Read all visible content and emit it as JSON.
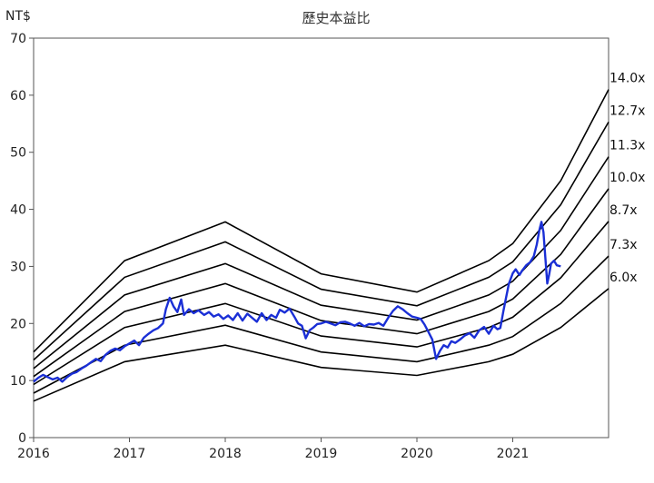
{
  "chart_data": {
    "type": "line",
    "title": "歷史本益比",
    "ylabel": "NT$",
    "xlabel": "",
    "xlim": [
      2016,
      2022
    ],
    "ylim": [
      0,
      70
    ],
    "yticks": [
      0,
      10,
      20,
      30,
      40,
      50,
      60,
      70
    ],
    "xticks": [
      "2016",
      "2017",
      "2018",
      "2019",
      "2020",
      "2021"
    ],
    "grid": false,
    "colors": {
      "bands": "#000000",
      "price": "#1a2fd6"
    },
    "bands": [
      {
        "name": "14.0x",
        "points": [
          [
            2016.0,
            15.0
          ],
          [
            2016.95,
            31.0
          ],
          [
            2018.0,
            37.8
          ],
          [
            2019.0,
            28.7
          ],
          [
            2020.0,
            25.5
          ],
          [
            2020.75,
            31.0
          ],
          [
            2021.0,
            34.0
          ],
          [
            2021.5,
            45.0
          ],
          [
            2022.0,
            61.0
          ]
        ]
      },
      {
        "name": "12.7x",
        "points": [
          [
            2016.0,
            13.6
          ],
          [
            2016.95,
            28.1
          ],
          [
            2018.0,
            34.3
          ],
          [
            2019.0,
            26.0
          ],
          [
            2020.0,
            23.1
          ],
          [
            2020.75,
            28.1
          ],
          [
            2021.0,
            30.8
          ],
          [
            2021.5,
            40.8
          ],
          [
            2022.0,
            55.3
          ]
        ]
      },
      {
        "name": "11.3x",
        "points": [
          [
            2016.0,
            12.1
          ],
          [
            2016.95,
            25.0
          ],
          [
            2018.0,
            30.5
          ],
          [
            2019.0,
            23.2
          ],
          [
            2020.0,
            20.6
          ],
          [
            2020.75,
            25.0
          ],
          [
            2021.0,
            27.4
          ],
          [
            2021.5,
            36.3
          ],
          [
            2022.0,
            49.2
          ]
        ]
      },
      {
        "name": "10.0x",
        "points": [
          [
            2016.0,
            10.7
          ],
          [
            2016.95,
            22.1
          ],
          [
            2018.0,
            27.0
          ],
          [
            2019.0,
            20.5
          ],
          [
            2020.0,
            18.2
          ],
          [
            2020.75,
            22.1
          ],
          [
            2021.0,
            24.3
          ],
          [
            2021.5,
            32.1
          ],
          [
            2022.0,
            43.6
          ]
        ]
      },
      {
        "name": "8.7x",
        "points": [
          [
            2016.0,
            9.3
          ],
          [
            2016.95,
            19.3
          ],
          [
            2018.0,
            23.5
          ],
          [
            2019.0,
            17.8
          ],
          [
            2020.0,
            15.9
          ],
          [
            2020.75,
            19.3
          ],
          [
            2021.0,
            21.1
          ],
          [
            2021.5,
            28.0
          ],
          [
            2022.0,
            37.9
          ]
        ]
      },
      {
        "name": "7.3x",
        "points": [
          [
            2016.0,
            7.8
          ],
          [
            2016.95,
            16.2
          ],
          [
            2018.0,
            19.7
          ],
          [
            2019.0,
            15.0
          ],
          [
            2020.0,
            13.3
          ],
          [
            2020.75,
            16.2
          ],
          [
            2021.0,
            17.7
          ],
          [
            2021.5,
            23.5
          ],
          [
            2022.0,
            31.8
          ]
        ]
      },
      {
        "name": "6.0x",
        "points": [
          [
            2016.0,
            6.4
          ],
          [
            2016.95,
            13.3
          ],
          [
            2018.0,
            16.2
          ],
          [
            2019.0,
            12.3
          ],
          [
            2020.0,
            10.9
          ],
          [
            2020.75,
            13.3
          ],
          [
            2021.0,
            14.6
          ],
          [
            2021.5,
            19.3
          ],
          [
            2022.0,
            26.1
          ]
        ]
      }
    ],
    "price": {
      "name": "",
      "points": [
        [
          2016.0,
          9.8
        ],
        [
          2016.05,
          10.5
        ],
        [
          2016.1,
          11.0
        ],
        [
          2016.15,
          10.6
        ],
        [
          2016.2,
          10.2
        ],
        [
          2016.25,
          10.5
        ],
        [
          2016.3,
          9.8
        ],
        [
          2016.35,
          10.6
        ],
        [
          2016.4,
          11.2
        ],
        [
          2016.45,
          11.5
        ],
        [
          2016.5,
          12.1
        ],
        [
          2016.55,
          12.6
        ],
        [
          2016.6,
          13.2
        ],
        [
          2016.65,
          13.8
        ],
        [
          2016.7,
          13.4
        ],
        [
          2016.75,
          14.5
        ],
        [
          2016.8,
          15.2
        ],
        [
          2016.85,
          15.6
        ],
        [
          2016.9,
          15.3
        ],
        [
          2016.95,
          16.0
        ],
        [
          2017.0,
          16.5
        ],
        [
          2017.05,
          17.0
        ],
        [
          2017.1,
          16.2
        ],
        [
          2017.15,
          17.5
        ],
        [
          2017.2,
          18.2
        ],
        [
          2017.25,
          18.8
        ],
        [
          2017.3,
          19.2
        ],
        [
          2017.35,
          20.0
        ],
        [
          2017.38,
          22.5
        ],
        [
          2017.42,
          24.5
        ],
        [
          2017.46,
          23.0
        ],
        [
          2017.5,
          22.0
        ],
        [
          2017.54,
          24.2
        ],
        [
          2017.57,
          21.5
        ],
        [
          2017.62,
          22.5
        ],
        [
          2017.67,
          21.8
        ],
        [
          2017.72,
          22.3
        ],
        [
          2017.78,
          21.5
        ],
        [
          2017.83,
          22.0
        ],
        [
          2017.88,
          21.2
        ],
        [
          2017.93,
          21.6
        ],
        [
          2017.98,
          20.8
        ],
        [
          2018.03,
          21.4
        ],
        [
          2018.08,
          20.6
        ],
        [
          2018.13,
          21.8
        ],
        [
          2018.18,
          20.5
        ],
        [
          2018.23,
          21.7
        ],
        [
          2018.28,
          21.0
        ],
        [
          2018.33,
          20.3
        ],
        [
          2018.38,
          21.8
        ],
        [
          2018.43,
          20.6
        ],
        [
          2018.48,
          21.5
        ],
        [
          2018.53,
          21.0
        ],
        [
          2018.57,
          22.4
        ],
        [
          2018.62,
          21.9
        ],
        [
          2018.67,
          22.6
        ],
        [
          2018.72,
          21.2
        ],
        [
          2018.76,
          20.0
        ],
        [
          2018.8,
          19.6
        ],
        [
          2018.84,
          17.4
        ],
        [
          2018.88,
          18.8
        ],
        [
          2018.92,
          19.3
        ],
        [
          2018.96,
          19.9
        ],
        [
          2019.0,
          20.0
        ],
        [
          2019.05,
          20.3
        ],
        [
          2019.1,
          20.0
        ],
        [
          2019.15,
          19.7
        ],
        [
          2019.2,
          20.2
        ],
        [
          2019.25,
          20.3
        ],
        [
          2019.3,
          20.0
        ],
        [
          2019.35,
          19.6
        ],
        [
          2019.4,
          20.1
        ],
        [
          2019.45,
          19.5
        ],
        [
          2019.5,
          19.9
        ],
        [
          2019.55,
          19.8
        ],
        [
          2019.6,
          20.1
        ],
        [
          2019.65,
          19.6
        ],
        [
          2019.7,
          21.0
        ],
        [
          2019.75,
          22.2
        ],
        [
          2019.8,
          23.0
        ],
        [
          2019.85,
          22.5
        ],
        [
          2019.9,
          21.8
        ],
        [
          2019.95,
          21.2
        ],
        [
          2020.0,
          21.0
        ],
        [
          2020.04,
          20.8
        ],
        [
          2020.08,
          19.8
        ],
        [
          2020.12,
          18.5
        ],
        [
          2020.16,
          17.2
        ],
        [
          2020.2,
          13.8
        ],
        [
          2020.24,
          15.2
        ],
        [
          2020.28,
          16.2
        ],
        [
          2020.32,
          15.8
        ],
        [
          2020.36,
          16.9
        ],
        [
          2020.4,
          16.6
        ],
        [
          2020.45,
          17.2
        ],
        [
          2020.5,
          17.9
        ],
        [
          2020.55,
          18.3
        ],
        [
          2020.6,
          17.5
        ],
        [
          2020.65,
          18.8
        ],
        [
          2020.7,
          19.4
        ],
        [
          2020.75,
          18.2
        ],
        [
          2020.8,
          19.6
        ],
        [
          2020.84,
          19.0
        ],
        [
          2020.87,
          19.2
        ],
        [
          2020.9,
          22.0
        ],
        [
          2020.93,
          24.5
        ],
        [
          2020.96,
          27.0
        ],
        [
          2021.0,
          28.8
        ],
        [
          2021.03,
          29.5
        ],
        [
          2021.07,
          28.5
        ],
        [
          2021.1,
          29.3
        ],
        [
          2021.14,
          30.2
        ],
        [
          2021.18,
          30.7
        ],
        [
          2021.22,
          31.8
        ],
        [
          2021.25,
          33.8
        ],
        [
          2021.28,
          36.5
        ],
        [
          2021.3,
          37.8
        ],
        [
          2021.32,
          36.0
        ],
        [
          2021.34,
          31.5
        ],
        [
          2021.36,
          27.0
        ],
        [
          2021.38,
          28.6
        ],
        [
          2021.4,
          30.5
        ],
        [
          2021.43,
          31.0
        ],
        [
          2021.46,
          30.2
        ],
        [
          2021.5,
          30.0
        ]
      ]
    }
  }
}
